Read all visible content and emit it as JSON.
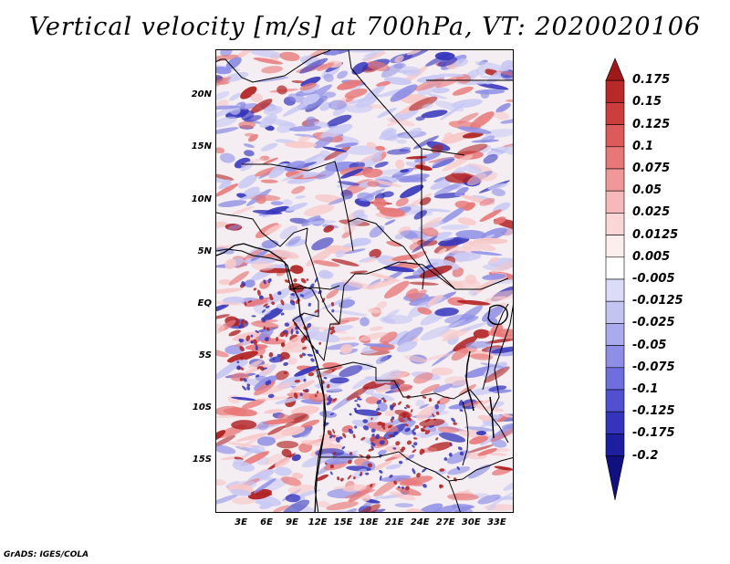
{
  "title": "Vertical velocity [m/s] at 700hPa, VT: 2020020106",
  "credit": "GrADS: IGES/COLA",
  "lat_ticks": [
    {
      "label": "20N",
      "value": 20
    },
    {
      "label": "15N",
      "value": 15
    },
    {
      "label": "10N",
      "value": 10
    },
    {
      "label": "5N",
      "value": 5
    },
    {
      "label": "EQ",
      "value": 0
    },
    {
      "label": "5S",
      "value": -5
    },
    {
      "label": "10S",
      "value": -10
    },
    {
      "label": "15S",
      "value": -15
    }
  ],
  "lon_ticks": [
    {
      "label": "3E",
      "value": 3
    },
    {
      "label": "6E",
      "value": 6
    },
    {
      "label": "9E",
      "value": 9
    },
    {
      "label": "12E",
      "value": 12
    },
    {
      "label": "15E",
      "value": 15
    },
    {
      "label": "18E",
      "value": 18
    },
    {
      "label": "21E",
      "value": 21
    },
    {
      "label": "24E",
      "value": 24
    },
    {
      "label": "27E",
      "value": 27
    },
    {
      "label": "30E",
      "value": 30
    },
    {
      "label": "33E",
      "value": 33
    }
  ],
  "colorbar": {
    "labels": [
      "0.175",
      "0.15",
      "0.125",
      "0.1",
      "0.075",
      "0.05",
      "0.025",
      "0.0125",
      "0.005",
      "-0.005",
      "-0.0125",
      "-0.025",
      "-0.05",
      "-0.075",
      "-0.1",
      "-0.125",
      "-0.175",
      "-0.2"
    ],
    "colors": [
      "#a01818",
      "#b82a2a",
      "#cc3d3d",
      "#dc5a5a",
      "#e87878",
      "#f09898",
      "#f6b8b8",
      "#fad6d6",
      "#fdeeee",
      "#ffffff",
      "#dcdcf8",
      "#c4c4f2",
      "#aaaaee",
      "#8e8ee6",
      "#6e6ede",
      "#5050d0",
      "#3434bc",
      "#1e1ea0",
      "#101080"
    ]
  },
  "map": {
    "lon_range": [
      0,
      35
    ],
    "lat_range": [
      -20,
      24.5
    ],
    "field_description": "700hPa vertical velocity (m/s) over central/western Africa",
    "colors": {
      "up_strong": "#b02020",
      "up": "#e87878",
      "up_weak": "#f8c8c8",
      "down_weak": "#c8c8f4",
      "down": "#8e8ee6",
      "down_strong": "#3434bc",
      "background": "#f4eef2"
    }
  }
}
